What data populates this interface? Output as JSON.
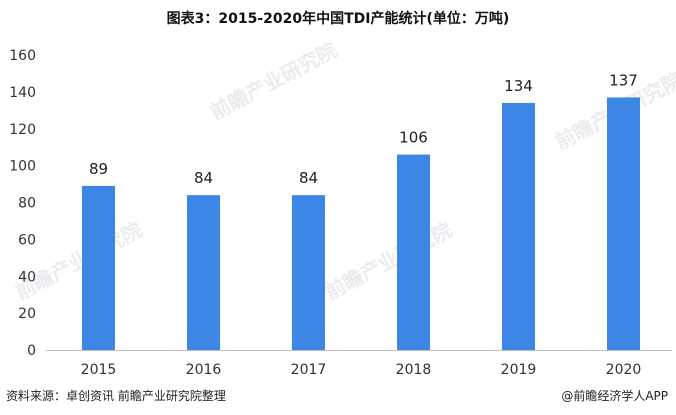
{
  "title": "图表3：2015-2020年中国TDI产能统计(单位：万吨)",
  "source": "资料来源：卓创资讯 前瞻产业研究院整理",
  "brand": "@前瞻经济学人APP",
  "watermark": "前瞻产业研究院",
  "colors": {
    "bar": "#3e86e6",
    "axis": "#bfbfbf"
  },
  "chart_data": {
    "type": "bar",
    "title": "图表3：2015-2020年中国TDI产能统计(单位：万吨)",
    "categories": [
      "2015",
      "2016",
      "2017",
      "2018",
      "2019",
      "2020"
    ],
    "values": [
      89,
      84,
      84,
      106,
      134,
      137
    ],
    "data_labels": [
      "89",
      "84",
      "84",
      "106",
      "134",
      "137"
    ],
    "yticks": [
      "0",
      "20",
      "40",
      "60",
      "80",
      "100",
      "120",
      "140",
      "160"
    ],
    "ylim": [
      0,
      160
    ],
    "xlabel": "",
    "ylabel": "",
    "grid": false,
    "legend": "none"
  }
}
